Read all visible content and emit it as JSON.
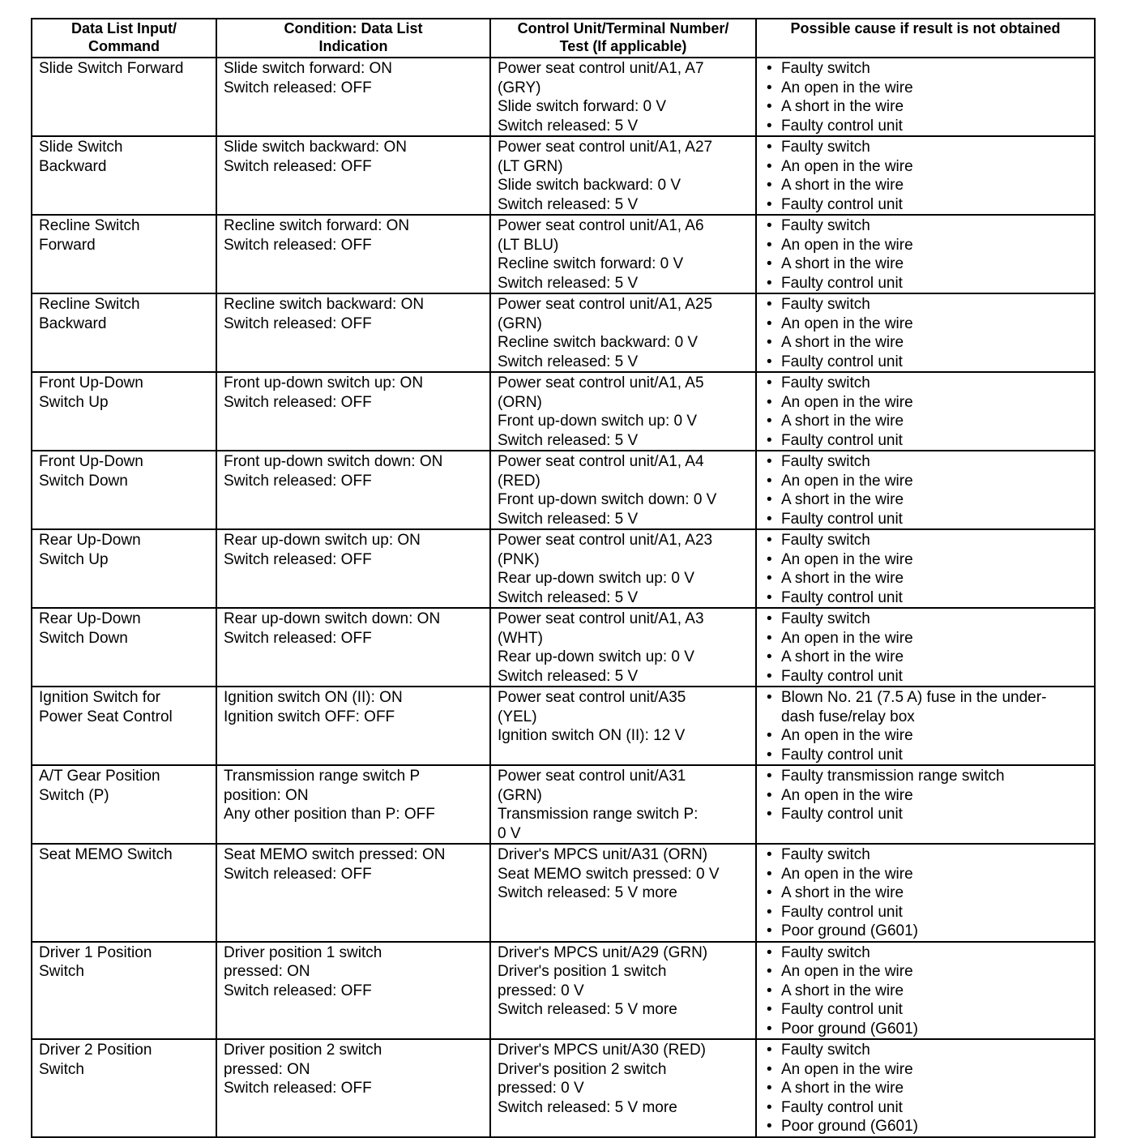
{
  "headers": [
    [
      "Data List Input/",
      "Command"
    ],
    [
      "Condition: Data List",
      "Indication"
    ],
    [
      "Control Unit/Terminal Number/",
      "Test (If applicable)"
    ],
    [
      "Possible cause if result is not obtained"
    ]
  ],
  "rows": [
    {
      "command": [
        "Slide Switch Forward"
      ],
      "condition": [
        "Slide switch forward: ON",
        "Switch released: OFF"
      ],
      "terminal": [
        "Power seat control unit/A1, A7",
        "(GRY)",
        "Slide switch forward: 0 V",
        "Switch released: 5 V"
      ],
      "causes": [
        [
          "Faulty switch"
        ],
        [
          "An open in the wire"
        ],
        [
          "A short in the wire"
        ],
        [
          "Faulty control unit"
        ]
      ]
    },
    {
      "command": [
        "Slide Switch",
        "Backward"
      ],
      "condition": [
        "Slide switch backward: ON",
        "Switch released: OFF"
      ],
      "terminal": [
        "Power seat control unit/A1, A27",
        "(LT GRN)",
        "Slide switch backward: 0 V",
        "Switch released: 5 V"
      ],
      "causes": [
        [
          "Faulty switch"
        ],
        [
          "An open in the wire"
        ],
        [
          "A short in the wire"
        ],
        [
          "Faulty control unit"
        ]
      ]
    },
    {
      "command": [
        "Recline Switch",
        "Forward"
      ],
      "condition": [
        "Recline switch forward: ON",
        "Switch released: OFF"
      ],
      "terminal": [
        "Power seat control unit/A1, A6",
        "(LT BLU)",
        "Recline switch forward: 0 V",
        "Switch released: 5 V"
      ],
      "causes": [
        [
          "Faulty switch"
        ],
        [
          "An open in the wire"
        ],
        [
          "A short in the wire"
        ],
        [
          "Faulty control unit"
        ]
      ]
    },
    {
      "command": [
        "Recline Switch",
        "Backward"
      ],
      "condition": [
        "Recline switch backward: ON",
        "Switch released: OFF"
      ],
      "terminal": [
        "Power seat control unit/A1, A25",
        "(GRN)",
        "Recline switch backward: 0 V",
        "Switch released: 5 V"
      ],
      "causes": [
        [
          "Faulty switch"
        ],
        [
          "An open in the wire"
        ],
        [
          "A short in the wire"
        ],
        [
          "Faulty control unit"
        ]
      ]
    },
    {
      "command": [
        "Front Up-Down",
        "Switch Up"
      ],
      "condition": [
        "Front up-down switch up: ON",
        "Switch released: OFF"
      ],
      "terminal": [
        "Power seat control unit/A1, A5",
        "(ORN)",
        "Front up-down switch up: 0 V",
        "Switch released: 5 V"
      ],
      "causes": [
        [
          "Faulty switch"
        ],
        [
          "An open in the wire"
        ],
        [
          "A short in the wire"
        ],
        [
          "Faulty control unit"
        ]
      ]
    },
    {
      "command": [
        "Front Up-Down",
        "Switch Down"
      ],
      "condition": [
        "Front up-down switch down: ON",
        "Switch released: OFF"
      ],
      "terminal": [
        "Power seat control unit/A1, A4",
        "(RED)",
        "Front up-down switch down: 0 V",
        "Switch released: 5 V"
      ],
      "causes": [
        [
          "Faulty switch"
        ],
        [
          "An open in the wire"
        ],
        [
          "A short in the wire"
        ],
        [
          "Faulty control unit"
        ]
      ]
    },
    {
      "command": [
        "Rear Up-Down",
        "Switch Up"
      ],
      "condition": [
        "Rear up-down switch up: ON",
        "Switch released: OFF"
      ],
      "terminal": [
        "Power seat control unit/A1, A23",
        "(PNK)",
        "Rear up-down switch up: 0 V",
        "Switch released: 5 V"
      ],
      "causes": [
        [
          "Faulty switch"
        ],
        [
          "An open in the wire"
        ],
        [
          "A short in the wire"
        ],
        [
          "Faulty control unit"
        ]
      ]
    },
    {
      "command": [
        "Rear Up-Down",
        "Switch Down"
      ],
      "condition": [
        "Rear up-down switch down: ON",
        "Switch released: OFF"
      ],
      "terminal": [
        "Power seat control unit/A1, A3",
        "(WHT)",
        "Rear up-down switch up: 0 V",
        "Switch released: 5 V"
      ],
      "causes": [
        [
          "Faulty switch"
        ],
        [
          "An open in the wire"
        ],
        [
          "A short in the wire"
        ],
        [
          "Faulty control unit"
        ]
      ]
    },
    {
      "command": [
        "Ignition Switch for",
        "Power Seat Control"
      ],
      "condition": [
        "Ignition switch ON (II): ON",
        "Ignition switch OFF: OFF"
      ],
      "terminal": [
        "Power seat control unit/A35",
        "(YEL)",
        "Ignition switch ON (II): 12 V"
      ],
      "causes": [
        [
          "Blown No. 21 (7.5 A) fuse in the under-",
          "dash fuse/relay box"
        ],
        [
          "An open in the wire"
        ],
        [
          "Faulty control unit"
        ]
      ]
    },
    {
      "command": [
        "A/T Gear Position",
        "Switch (P)"
      ],
      "condition": [
        "Transmission range switch P",
        "position: ON",
        "Any other position than P: OFF"
      ],
      "terminal": [
        "Power seat control unit/A31",
        "(GRN)",
        "Transmission range switch P:",
        "0 V"
      ],
      "causes": [
        [
          "Faulty transmission range switch"
        ],
        [
          "An open in the wire"
        ],
        [
          "Faulty control unit"
        ]
      ]
    },
    {
      "command": [
        "Seat MEMO Switch"
      ],
      "condition": [
        "Seat MEMO switch pressed: ON",
        "Switch released: OFF"
      ],
      "terminal": [
        "Driver's MPCS unit/A31 (ORN)",
        "Seat MEMO switch pressed: 0 V",
        "Switch released: 5 V more"
      ],
      "causes": [
        [
          "Faulty switch"
        ],
        [
          "An open in the wire"
        ],
        [
          "A short in the wire"
        ],
        [
          "Faulty control unit"
        ],
        [
          "Poor ground (G601)"
        ]
      ]
    },
    {
      "command": [
        "Driver 1 Position",
        "Switch"
      ],
      "condition": [
        "Driver position 1 switch",
        "pressed: ON",
        "Switch released: OFF"
      ],
      "terminal": [
        "Driver's MPCS unit/A29 (GRN)",
        "Driver's position 1 switch",
        "pressed: 0 V",
        "Switch released: 5 V more"
      ],
      "causes": [
        [
          "Faulty switch"
        ],
        [
          "An open in the wire"
        ],
        [
          "A short in the wire"
        ],
        [
          "Faulty control unit"
        ],
        [
          "Poor ground (G601)"
        ]
      ]
    },
    {
      "command": [
        "Driver 2 Position",
        "Switch"
      ],
      "condition": [
        "Driver position 2 switch",
        "pressed: ON",
        "Switch released: OFF"
      ],
      "terminal": [
        "Driver's MPCS unit/A30 (RED)",
        "Driver's position 2 switch",
        "pressed: 0 V",
        "Switch released: 5 V more"
      ],
      "causes": [
        [
          "Faulty switch"
        ],
        [
          "An open in the wire"
        ],
        [
          "A short in the wire"
        ],
        [
          "Faulty control unit"
        ],
        [
          "Poor ground (G601)"
        ]
      ]
    }
  ],
  "bullet": "•"
}
